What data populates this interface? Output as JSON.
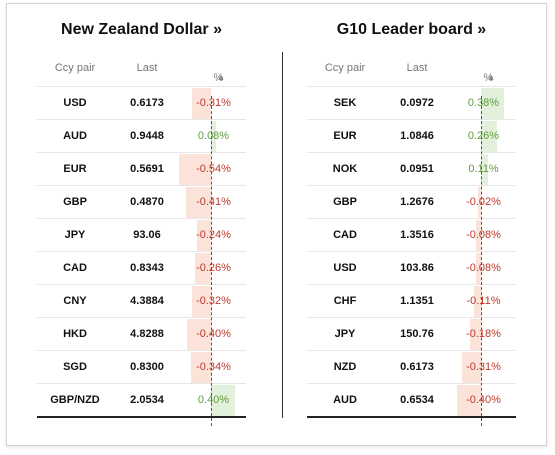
{
  "left": {
    "title": "New Zealand Dollar »",
    "headers": {
      "pair": "Ccy pair",
      "last": "Last",
      "pct": "%",
      "sort_arrow": "▲"
    },
    "rows": [
      {
        "pair": "USD",
        "last": "0.6173",
        "pct": "-0.31%",
        "value": -0.31
      },
      {
        "pair": "AUD",
        "last": "0.9448",
        "pct": "0.08%",
        "value": 0.08
      },
      {
        "pair": "EUR",
        "last": "0.5691",
        "pct": "-0.54%",
        "value": -0.54
      },
      {
        "pair": "GBP",
        "last": "0.4870",
        "pct": "-0.41%",
        "value": -0.41
      },
      {
        "pair": "JPY",
        "last": "93.06",
        "pct": "-0.24%",
        "value": -0.24
      },
      {
        "pair": "CAD",
        "last": "0.8343",
        "pct": "-0.26%",
        "value": -0.26
      },
      {
        "pair": "CNY",
        "last": "4.3884",
        "pct": "-0.32%",
        "value": -0.32
      },
      {
        "pair": "HKD",
        "last": "4.8288",
        "pct": "-0.40%",
        "value": -0.4
      },
      {
        "pair": "SGD",
        "last": "0.8300",
        "pct": "-0.34%",
        "value": -0.34
      },
      {
        "pair": "GBP/NZD",
        "last": "2.0534",
        "pct": "0.40%",
        "value": 0.4
      }
    ]
  },
  "right": {
    "title": "G10 Leader board »",
    "headers": {
      "pair": "Ccy pair",
      "last": "Last",
      "pct": "%",
      "sort_arrow": "▲"
    },
    "rows": [
      {
        "pair": "SEK",
        "last": "0.0972",
        "pct": "0.38%",
        "value": 0.38
      },
      {
        "pair": "EUR",
        "last": "1.0846",
        "pct": "0.26%",
        "value": 0.26
      },
      {
        "pair": "NOK",
        "last": "0.0951",
        "pct": "0.11%",
        "value": 0.11
      },
      {
        "pair": "GBP",
        "last": "1.2676",
        "pct": "-0.02%",
        "value": -0.02
      },
      {
        "pair": "CAD",
        "last": "1.3516",
        "pct": "-0.08%",
        "value": -0.08
      },
      {
        "pair": "USD",
        "last": "103.86",
        "pct": "-0.08%",
        "value": -0.08
      },
      {
        "pair": "CHF",
        "last": "1.1351",
        "pct": "-0.11%",
        "value": -0.11
      },
      {
        "pair": "JPY",
        "last": "150.76",
        "pct": "-0.18%",
        "value": -0.18
      },
      {
        "pair": "NZD",
        "last": "0.6173",
        "pct": "-0.31%",
        "value": -0.31
      },
      {
        "pair": "AUD",
        "last": "0.6534",
        "pct": "-0.40%",
        "value": -0.4
      }
    ]
  },
  "colors": {
    "negative_text": "#c0392b",
    "positive_text": "#5d9b3a",
    "negative_bar": "#fbe3da",
    "positive_bar": "#e3f1dc"
  }
}
